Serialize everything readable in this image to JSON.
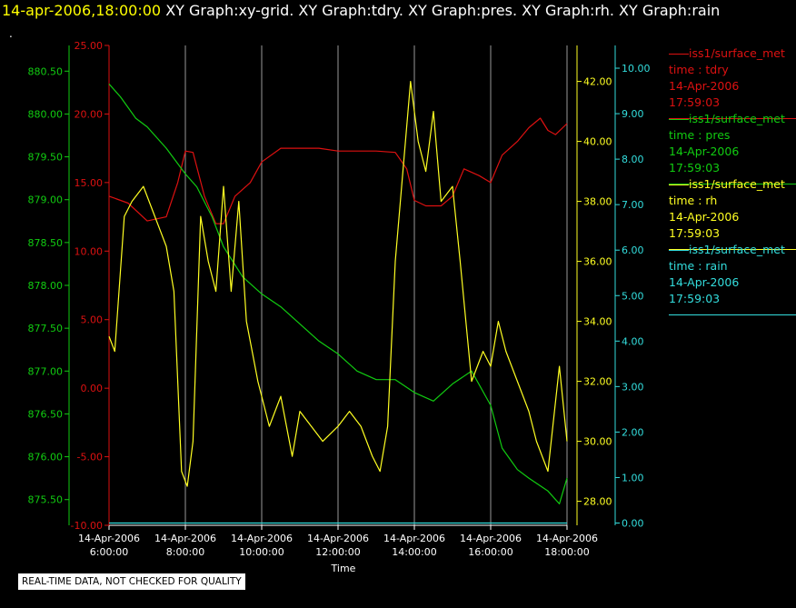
{
  "header": {
    "timestamp": "14-apr-2006,18:00:00",
    "titles": [
      "XY Graph:xy-grid.",
      "XY Graph:tdry.",
      "XY Graph:pres.",
      "XY Graph:rh.",
      "XY Graph:rain"
    ],
    "dot": "."
  },
  "colors": {
    "tdry": "#dd1111",
    "pres": "#11cc11",
    "rh": "#ffff22",
    "rain": "#33dddd",
    "axis": "#ffffff",
    "grid": "#999999",
    "background": "#000000"
  },
  "legend": [
    {
      "source": "iss1/surface_met",
      "var": "time : tdry",
      "date": "14-Apr-2006",
      "time": "17:59:03",
      "color": "#dd1111"
    },
    {
      "source": "iss1/surface_met",
      "var": "time : pres",
      "date": "14-Apr-2006",
      "time": "17:59:03",
      "color": "#11cc11"
    },
    {
      "source": "iss1/surface_met",
      "var": "time : rh",
      "date": "14-Apr-2006",
      "time": "17:59:03",
      "color": "#ffff22"
    },
    {
      "source": "iss1/surface_met",
      "var": "time : rain",
      "date": "14-Apr-2006",
      "time": "17:59:03",
      "color": "#33dddd"
    }
  ],
  "note": "REAL-TIME DATA, NOT CHECKED FOR QUALITY",
  "chart_data": {
    "type": "line",
    "xlabel": "Time",
    "xlim": [
      6,
      18
    ],
    "x_ticks": [
      {
        "x": 6,
        "date": "14-Apr-2006",
        "time": "6:00:00"
      },
      {
        "x": 8,
        "date": "14-Apr-2006",
        "time": "8:00:00"
      },
      {
        "x": 10,
        "date": "14-Apr-2006",
        "time": "10:00:00"
      },
      {
        "x": 12,
        "date": "14-Apr-2006",
        "time": "12:00:00"
      },
      {
        "x": 14,
        "date": "14-Apr-2006",
        "time": "14:00:00"
      },
      {
        "x": 16,
        "date": "14-Apr-2006",
        "time": "16:00:00"
      },
      {
        "x": 18,
        "date": "14-Apr-2006",
        "time": "18:00:00"
      }
    ],
    "grid": "vertical",
    "axes": {
      "pres": {
        "side": "left-outer",
        "ylim": [
          875.2,
          880.8
        ],
        "ticks": [
          "875.50",
          "876.00",
          "876.50",
          "877.00",
          "877.50",
          "878.00",
          "878.50",
          "879.00",
          "879.50",
          "880.00",
          "880.50"
        ]
      },
      "tdry": {
        "side": "left-inner",
        "ylim": [
          -10,
          25
        ],
        "ticks": [
          "-10.00",
          "-5.00",
          "0.00",
          "5.00",
          "10.00",
          "15.00",
          "20.00",
          "25.00"
        ]
      },
      "rh": {
        "side": "right-inner",
        "ylim": [
          27.2,
          43.2
        ],
        "ticks": [
          "28.00",
          "30.00",
          "32.00",
          "34.00",
          "36.00",
          "38.00",
          "40.00",
          "42.00"
        ]
      },
      "rain": {
        "side": "right-outer",
        "ylim": [
          -0.05,
          10.5
        ],
        "ticks": [
          "0.00",
          "1.00",
          "2.00",
          "3.00",
          "4.00",
          "5.00",
          "6.00",
          "7.00",
          "8.00",
          "9.00",
          "10.00"
        ]
      }
    },
    "series": [
      {
        "name": "iss1/surface_met time : tdry",
        "axis": "tdry",
        "color": "#dd1111",
        "x": [
          6,
          6.5,
          7,
          7.5,
          7.8,
          8,
          8.2,
          8.5,
          8.8,
          9,
          9.3,
          9.7,
          10,
          10.5,
          11,
          11.5,
          12,
          12.5,
          13,
          13.5,
          13.8,
          14,
          14.3,
          14.7,
          15,
          15.3,
          15.7,
          16,
          16.3,
          16.7,
          17,
          17.3,
          17.5,
          17.7,
          18
        ],
        "y": [
          14,
          13.5,
          12.2,
          12.5,
          15,
          17.3,
          17.2,
          14,
          12,
          12,
          14,
          15,
          16.5,
          17.5,
          17.5,
          17.5,
          17.3,
          17.3,
          17.3,
          17.2,
          16,
          13.7,
          13.3,
          13.3,
          14,
          16,
          15.5,
          15,
          17,
          18,
          19,
          19.7,
          18.8,
          18.5,
          19.3
        ]
      },
      {
        "name": "iss1/surface_met time : pres",
        "axis": "pres",
        "color": "#11cc11",
        "x": [
          6,
          6.3,
          6.7,
          7,
          7.5,
          8,
          8.3,
          8.7,
          9,
          9.5,
          10,
          10.5,
          11,
          11.5,
          12,
          12.5,
          13,
          13.5,
          14,
          14.5,
          15,
          15.5,
          16,
          16.3,
          16.7,
          17,
          17.5,
          17.8,
          18
        ],
        "y": [
          880.35,
          880.2,
          879.95,
          879.85,
          879.6,
          879.3,
          879.15,
          878.8,
          878.45,
          878.1,
          877.9,
          877.75,
          877.55,
          877.35,
          877.2,
          877.0,
          876.9,
          876.9,
          876.75,
          876.65,
          876.85,
          877.0,
          876.6,
          876.1,
          875.85,
          875.75,
          875.6,
          875.45,
          875.75
        ]
      },
      {
        "name": "iss1/surface_met time : rh",
        "axis": "rh",
        "color": "#ffff22",
        "x": [
          6,
          6.15,
          6.4,
          6.6,
          6.9,
          7.2,
          7.5,
          7.7,
          7.9,
          8.05,
          8.2,
          8.4,
          8.6,
          8.8,
          9.0,
          9.2,
          9.4,
          9.6,
          9.9,
          10.2,
          10.5,
          10.8,
          11.0,
          11.3,
          11.6,
          12.0,
          12.3,
          12.6,
          12.9,
          13.1,
          13.3,
          13.5,
          13.7,
          13.9,
          14.1,
          14.3,
          14.5,
          14.7,
          15.0,
          15.2,
          15.5,
          15.8,
          16.0,
          16.2,
          16.4,
          16.7,
          17.0,
          17.2,
          17.5,
          17.8,
          18.0
        ],
        "y": [
          33.5,
          33.0,
          37.5,
          38.0,
          38.5,
          37.5,
          36.5,
          35.0,
          29.0,
          28.5,
          30.0,
          37.5,
          36.0,
          35.0,
          38.5,
          35.0,
          38.0,
          34.0,
          32.0,
          30.5,
          31.5,
          29.5,
          31.0,
          30.5,
          30.0,
          30.5,
          31.0,
          30.5,
          29.5,
          29.0,
          30.5,
          36.0,
          39.0,
          42.0,
          40.0,
          39.0,
          41.0,
          38.0,
          38.5,
          36.0,
          32.0,
          33.0,
          32.5,
          34.0,
          33.0,
          32.0,
          31.0,
          30.0,
          29.0,
          32.5,
          30.0
        ]
      },
      {
        "name": "iss1/surface_met time : rain",
        "axis": "rain",
        "color": "#33dddd",
        "x": [
          6,
          18
        ],
        "y": [
          0,
          0
        ]
      }
    ]
  }
}
